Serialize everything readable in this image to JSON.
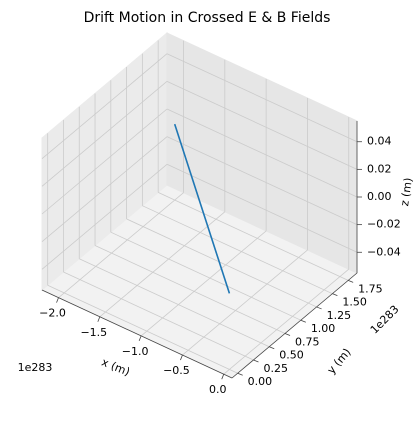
{
  "chart_data": {
    "type": "line3d",
    "title": "Drift Motion in Crossed E & B Fields",
    "xlabel": "x (m)",
    "ylabel": "y (m)",
    "zlabel": "z (m)",
    "x_offset_label": "1e283",
    "y_offset_label": "1e283",
    "series": [
      {
        "color": "#1f77b4",
        "x": [
          -2e+283,
          0
        ],
        "y": [
          1.75e+283,
          0
        ],
        "z": [
          0,
          0
        ]
      }
    ],
    "xlim": [
      -2.2e+283,
      1e+282
    ],
    "ylim": [
      -9e+281,
      1.89e+283
    ],
    "zlim": [
      -0.055,
      0.055
    ],
    "xticks": [
      {
        "value": -2e+283,
        "label": "−2.0"
      },
      {
        "value": -1.5e+283,
        "label": "−1.5"
      },
      {
        "value": -1e+283,
        "label": "−1.0"
      },
      {
        "value": -5e+282,
        "label": "−0.5"
      },
      {
        "value": 0,
        "label": "0.0"
      }
    ],
    "yticks": [
      {
        "value": 0,
        "label": "0.00"
      },
      {
        "value": 2.5e+282,
        "label": "0.25"
      },
      {
        "value": 5e+282,
        "label": "0.50"
      },
      {
        "value": 7.5e+282,
        "label": "0.75"
      },
      {
        "value": 1e+283,
        "label": "1.00"
      },
      {
        "value": 1.25e+283,
        "label": "1.25"
      },
      {
        "value": 1.5e+283,
        "label": "1.50"
      },
      {
        "value": 1.75e+283,
        "label": "1.75"
      }
    ],
    "zticks": [
      {
        "value": -0.04,
        "label": "−0.04"
      },
      {
        "value": -0.02,
        "label": "−0.02"
      },
      {
        "value": 0,
        "label": "0.00"
      },
      {
        "value": 0.02,
        "label": "0.02"
      },
      {
        "value": 0.04,
        "label": "0.04"
      }
    ],
    "grid": true
  }
}
